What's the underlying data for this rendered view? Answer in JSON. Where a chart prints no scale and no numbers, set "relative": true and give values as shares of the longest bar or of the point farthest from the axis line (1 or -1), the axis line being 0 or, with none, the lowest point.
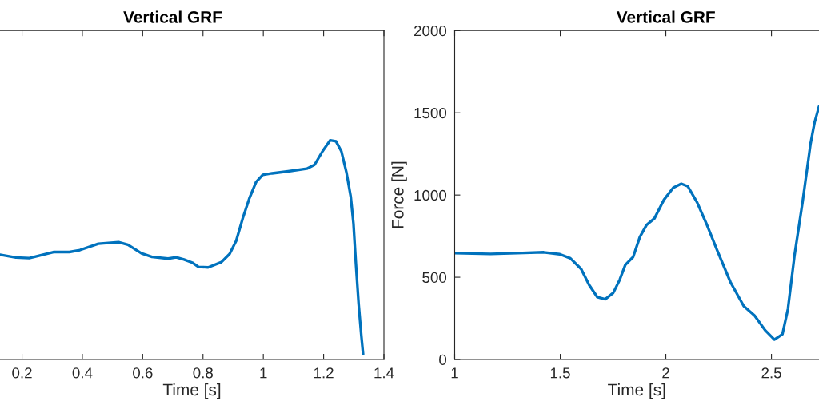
{
  "chart_data": [
    {
      "type": "line",
      "title": "Vertical GRF",
      "xlabel": "Time [s]",
      "relative": true,
      "x": [
        0.127,
        0.18,
        0.224,
        0.304,
        0.357,
        0.392,
        0.453,
        0.52,
        0.551,
        0.596,
        0.631,
        0.684,
        0.711,
        0.737,
        0.764,
        0.785,
        0.817,
        0.861,
        0.888,
        0.91,
        0.932,
        0.954,
        0.976,
        0.998,
        1.029,
        1.082,
        1.144,
        1.17,
        1.197,
        1.222,
        1.241,
        1.259,
        1.276,
        1.29,
        1.299,
        1.307,
        1.316,
        1.325,
        1.331
      ],
      "series": [
        {
          "color": "#0072bd",
          "values": [
            0.478,
            0.465,
            0.462,
            0.49,
            0.49,
            0.499,
            0.528,
            0.535,
            0.523,
            0.484,
            0.468,
            0.46,
            0.466,
            0.456,
            0.442,
            0.422,
            0.42,
            0.444,
            0.481,
            0.541,
            0.645,
            0.736,
            0.809,
            0.842,
            0.849,
            0.858,
            0.87,
            0.888,
            0.951,
            1.0,
            0.995,
            0.949,
            0.851,
            0.742,
            0.62,
            0.438,
            0.255,
            0.109,
            0.024
          ]
        }
      ],
      "xlim": [
        0.127,
        1.4
      ],
      "xticks": [
        0.2,
        0.4,
        0.6,
        0.8,
        1,
        1.2,
        1.4
      ]
    },
    {
      "type": "line",
      "title": "Vertical GRF",
      "xlabel": "Time [s]",
      "ylabel": "Force [N]",
      "x": [
        1.0,
        1.17,
        1.296,
        1.422,
        1.498,
        1.548,
        1.599,
        1.637,
        1.675,
        1.713,
        1.751,
        1.782,
        1.808,
        1.845,
        1.877,
        1.908,
        1.946,
        1.991,
        2.035,
        2.073,
        2.104,
        2.148,
        2.192,
        2.243,
        2.306,
        2.369,
        2.42,
        2.47,
        2.514,
        2.552,
        2.578,
        2.609,
        2.647,
        2.685,
        2.704,
        2.725
      ],
      "series": [
        {
          "color": "#0072bd",
          "values": [
            647,
            642,
            647,
            652,
            640,
            615,
            550,
            453,
            380,
            366,
            405,
            486,
            575,
            623,
            745,
            817,
            858,
            971,
            1044,
            1069,
            1053,
            955,
            826,
            664,
            470,
            324,
            267,
            178,
            121,
            154,
            307,
            631,
            955,
            1311,
            1441,
            1538
          ]
        }
      ],
      "xlim": [
        1,
        2.725
      ],
      "xticks": [
        1,
        1.5,
        2,
        2.5
      ],
      "ylim": [
        0,
        2000
      ],
      "yticks": [
        0,
        500,
        1000,
        1500,
        2000
      ]
    }
  ]
}
